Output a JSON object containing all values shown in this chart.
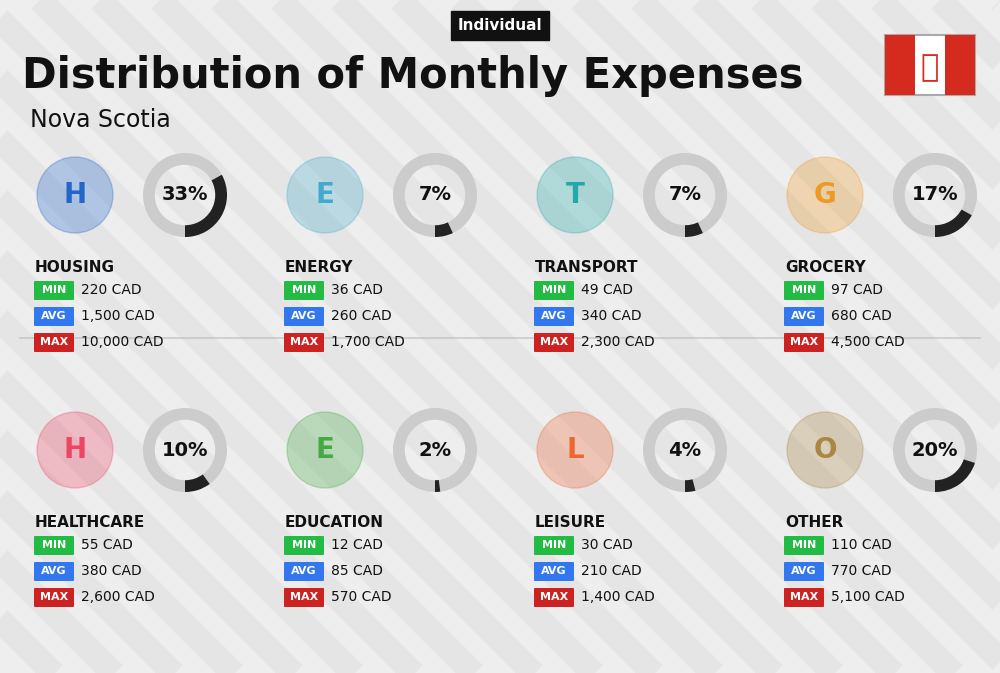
{
  "title": "Distribution of Monthly Expenses",
  "subtitle": "Individual",
  "location": "Nova Scotia",
  "bg_color": "#eeeeee",
  "categories": [
    {
      "name": "HOUSING",
      "pct": 33,
      "min_val": "220 CAD",
      "avg_val": "1,500 CAD",
      "max_val": "10,000 CAD",
      "col": 0,
      "row": 0
    },
    {
      "name": "ENERGY",
      "pct": 7,
      "min_val": "36 CAD",
      "avg_val": "260 CAD",
      "max_val": "1,700 CAD",
      "col": 1,
      "row": 0
    },
    {
      "name": "TRANSPORT",
      "pct": 7,
      "min_val": "49 CAD",
      "avg_val": "340 CAD",
      "max_val": "2,300 CAD",
      "col": 2,
      "row": 0
    },
    {
      "name": "GROCERY",
      "pct": 17,
      "min_val": "97 CAD",
      "avg_val": "680 CAD",
      "max_val": "4,500 CAD",
      "col": 3,
      "row": 0
    },
    {
      "name": "HEALTHCARE",
      "pct": 10,
      "min_val": "55 CAD",
      "avg_val": "380 CAD",
      "max_val": "2,600 CAD",
      "col": 0,
      "row": 1
    },
    {
      "name": "EDUCATION",
      "pct": 2,
      "min_val": "12 CAD",
      "avg_val": "85 CAD",
      "max_val": "570 CAD",
      "col": 1,
      "row": 1
    },
    {
      "name": "LEISURE",
      "pct": 4,
      "min_val": "30 CAD",
      "avg_val": "210 CAD",
      "max_val": "1,400 CAD",
      "col": 2,
      "row": 1
    },
    {
      "name": "OTHER",
      "pct": 20,
      "min_val": "110 CAD",
      "avg_val": "770 CAD",
      "max_val": "5,100 CAD",
      "col": 3,
      "row": 1
    }
  ],
  "min_color": "#22bb44",
  "avg_color": "#3377ee",
  "max_color": "#cc2222",
  "donut_bg": "#cccccc",
  "donut_fg": "#222222",
  "stripe_color": "#dddddd",
  "flag_red": "#d52b1e"
}
